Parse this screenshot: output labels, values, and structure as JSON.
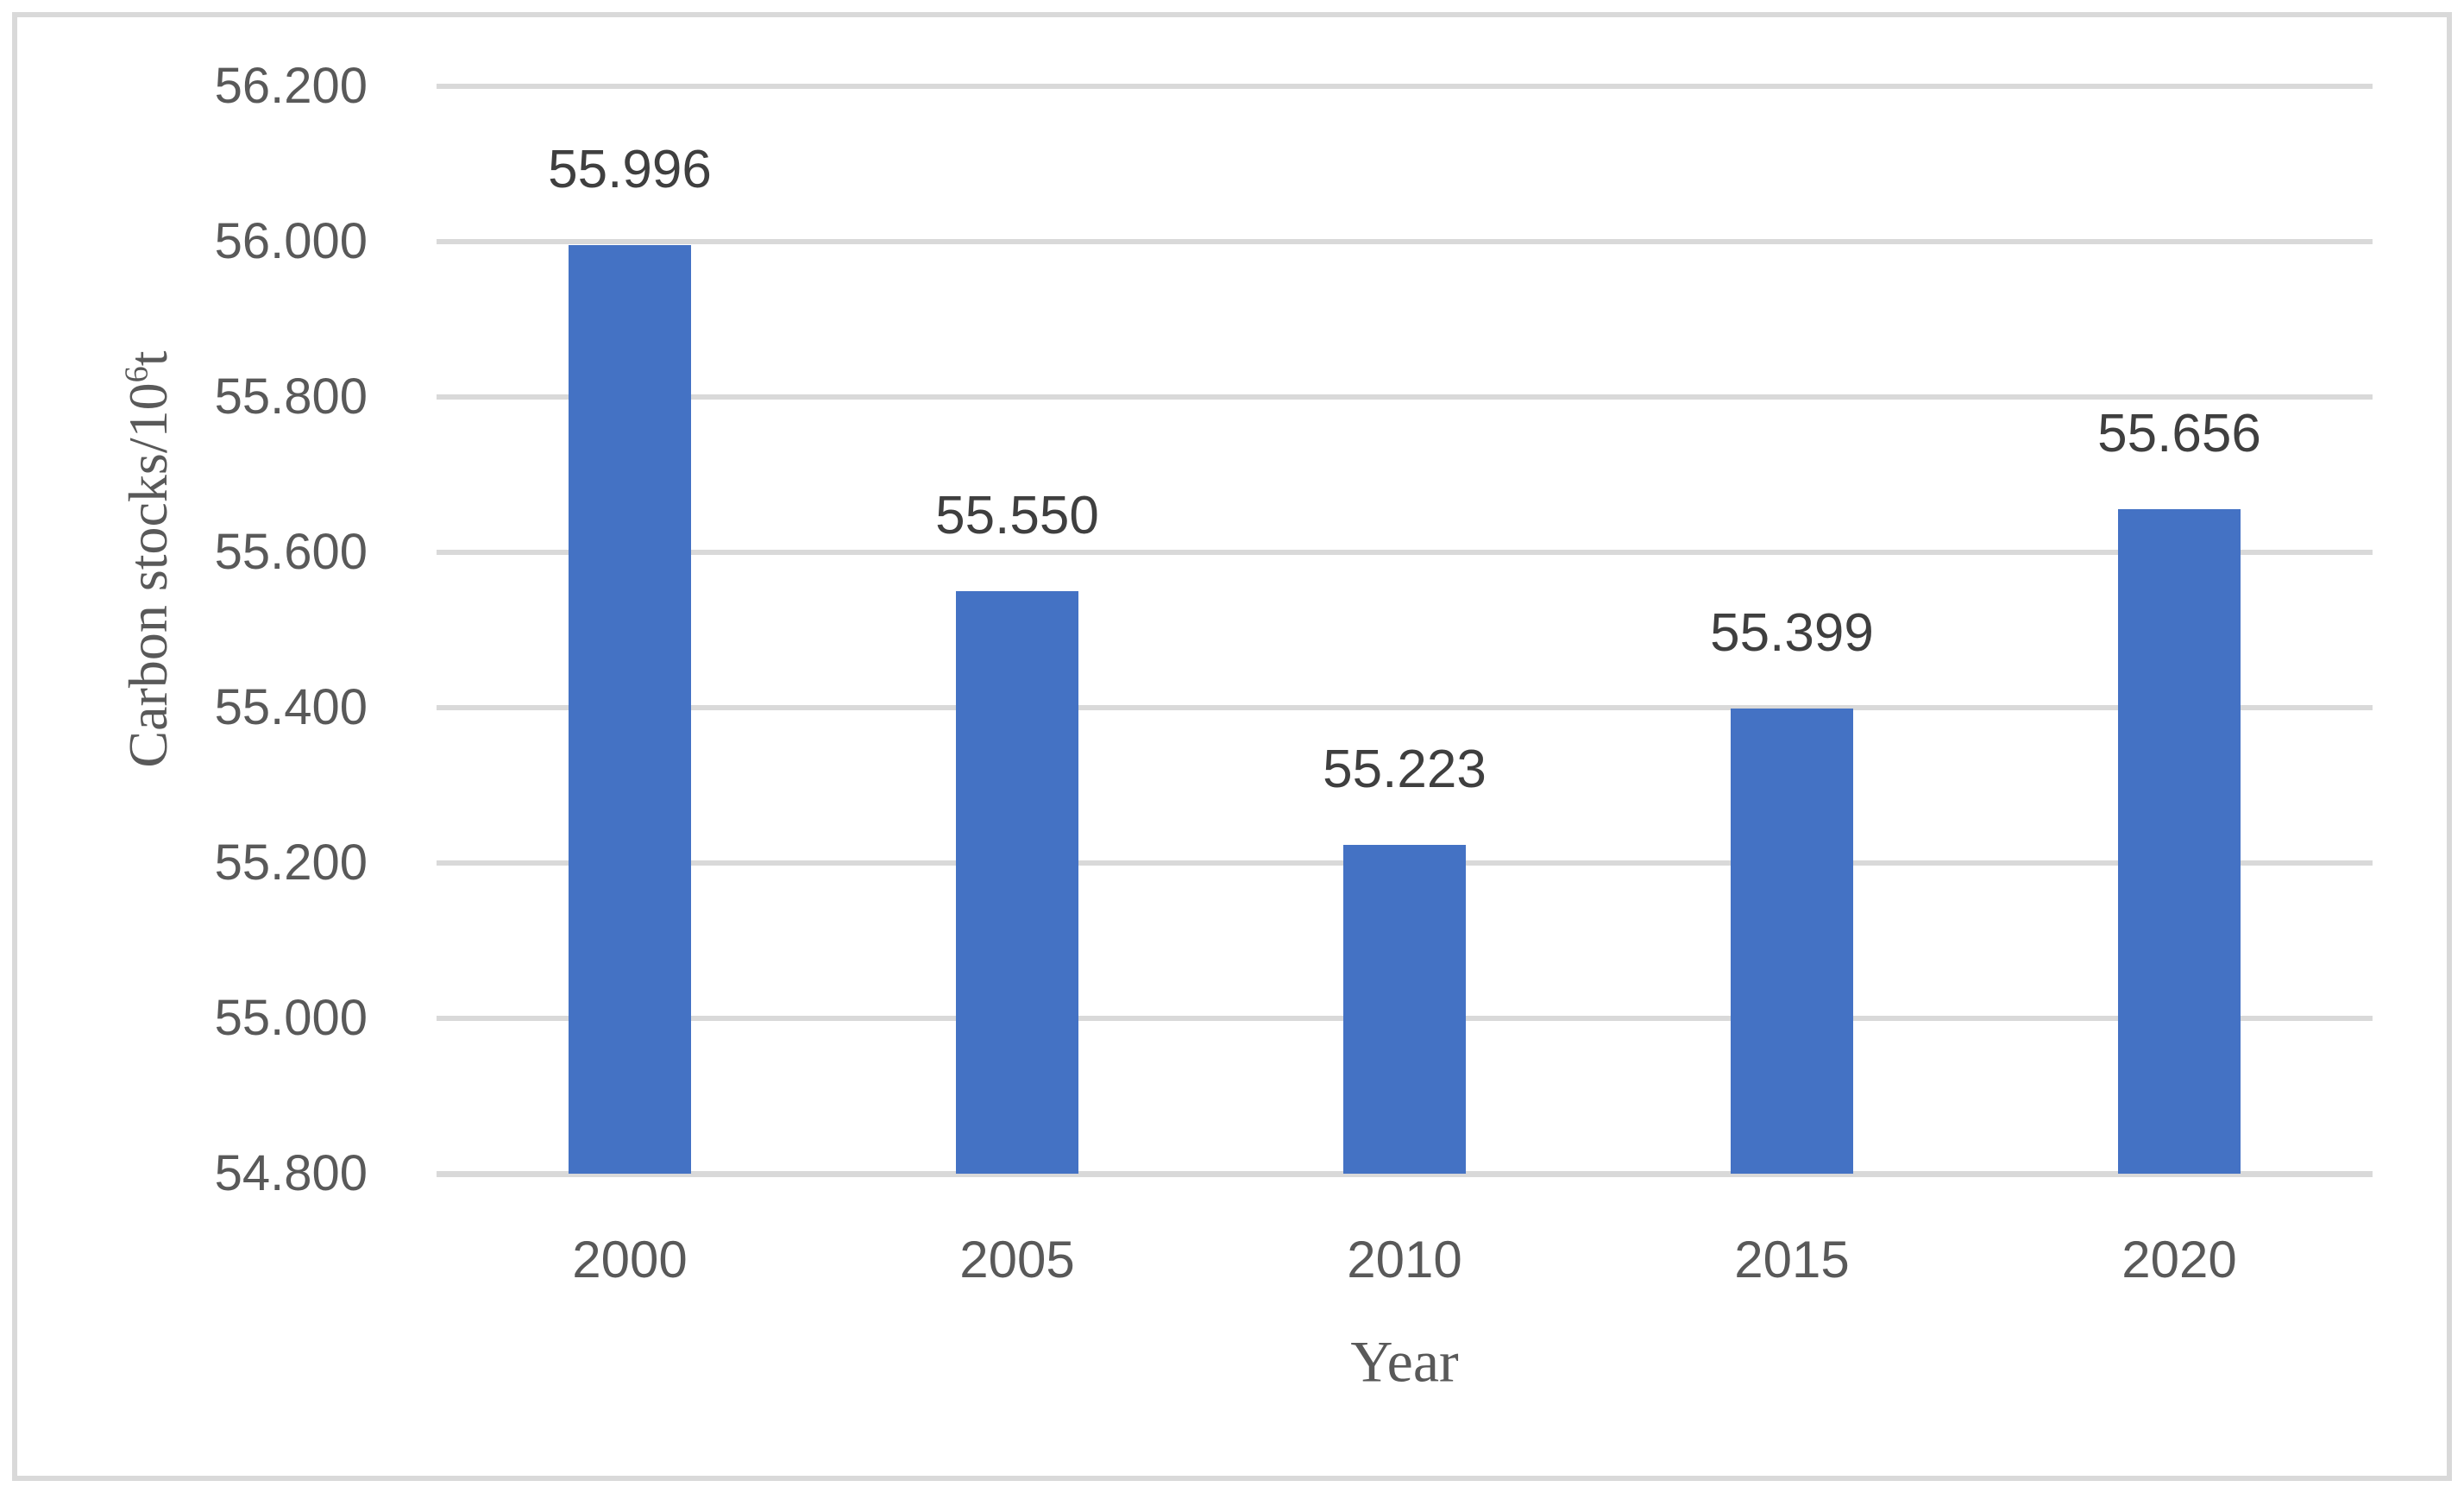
{
  "chart_data": {
    "type": "bar",
    "categories": [
      "2000",
      "2005",
      "2010",
      "2015",
      "2020"
    ],
    "values": [
      55.996,
      55.55,
      55.223,
      55.399,
      55.656
    ],
    "data_labels": [
      "55.996",
      "55.550",
      "55.223",
      "55.399",
      "55.656"
    ],
    "title": "",
    "xlabel": "Year",
    "ylabel": "Carbon stocks/10⁶t",
    "ylabel_parts": {
      "prefix": "Carbon stocks/10",
      "superscript": "6",
      "suffix": "t"
    },
    "ylim": [
      54.8,
      56.2
    ],
    "ytick_step": 0.2,
    "ytick_labels": [
      "56.200",
      "56.000",
      "55.800",
      "55.600",
      "55.400",
      "55.200",
      "55.000",
      "54.800"
    ],
    "grid": "horizontal",
    "legend_position": "none",
    "colors": {
      "bar": "#4472C4",
      "gridline": "#D9D9D9",
      "baseline": "#D9D9D9",
      "frame_border": "#D9D9D9",
      "tick_text": "#595959",
      "data_label_text": "#3F3F3F",
      "axis_title_text": "#595959",
      "background": "#FFFFFF"
    }
  }
}
